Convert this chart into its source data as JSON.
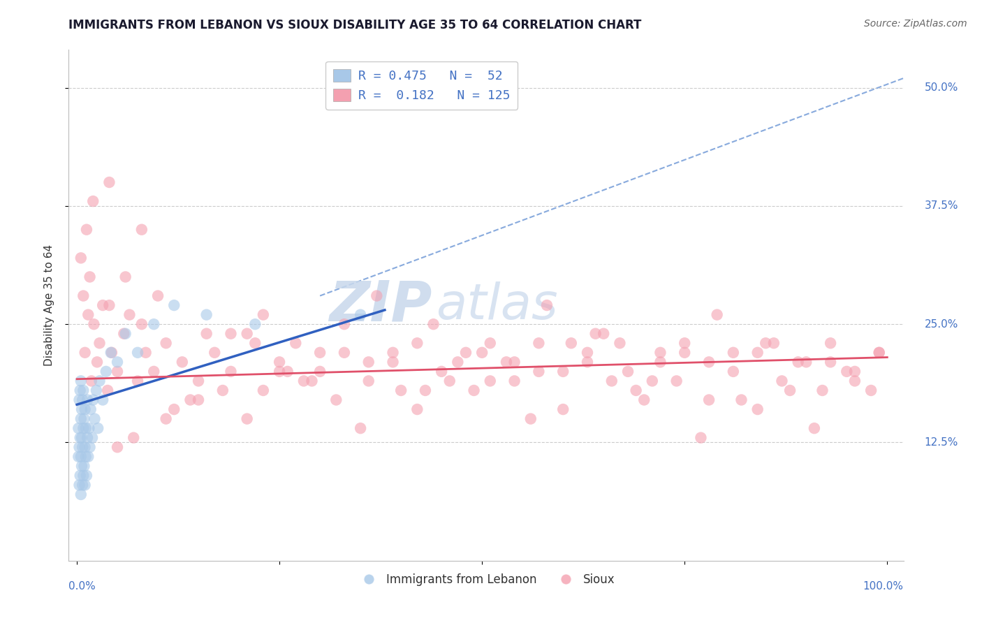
{
  "title": "IMMIGRANTS FROM LEBANON VS SIOUX DISABILITY AGE 35 TO 64 CORRELATION CHART",
  "source_text": "Source: ZipAtlas.com",
  "ylabel": "Disability Age 35 to 64",
  "xlim": [
    -0.01,
    1.02
  ],
  "ylim": [
    0.0,
    0.54
  ],
  "ytick_vals": [
    0.125,
    0.25,
    0.375,
    0.5
  ],
  "ytick_labels": [
    "12.5%",
    "25.0%",
    "37.5%",
    "50.0%"
  ],
  "xtick_vals": [
    0.0,
    1.0
  ],
  "xtick_labels": [
    "0.0%",
    "100.0%"
  ],
  "legend_line1": "R = 0.475   N =  52",
  "legend_line2": "R =  0.182   N = 125",
  "blue_scatter_color": "#a8c8e8",
  "pink_scatter_color": "#f4a0b0",
  "blue_line_color": "#3060c0",
  "pink_line_color": "#e0506a",
  "dash_line_color": "#88aadd",
  "tick_color": "#4472c4",
  "watermark_color": "#c8d8ec",
  "blue_x": [
    0.002,
    0.002,
    0.003,
    0.003,
    0.003,
    0.004,
    0.004,
    0.004,
    0.005,
    0.005,
    0.005,
    0.005,
    0.006,
    0.006,
    0.006,
    0.007,
    0.007,
    0.007,
    0.008,
    0.008,
    0.008,
    0.009,
    0.009,
    0.01,
    0.01,
    0.01,
    0.011,
    0.011,
    0.012,
    0.013,
    0.013,
    0.014,
    0.015,
    0.016,
    0.017,
    0.019,
    0.02,
    0.022,
    0.024,
    0.026,
    0.028,
    0.032,
    0.036,
    0.042,
    0.05,
    0.06,
    0.075,
    0.095,
    0.12,
    0.16,
    0.22,
    0.35
  ],
  "blue_y": [
    0.11,
    0.14,
    0.08,
    0.12,
    0.17,
    0.09,
    0.13,
    0.18,
    0.07,
    0.11,
    0.15,
    0.19,
    0.1,
    0.13,
    0.16,
    0.08,
    0.12,
    0.17,
    0.09,
    0.14,
    0.18,
    0.1,
    0.15,
    0.08,
    0.12,
    0.16,
    0.11,
    0.14,
    0.09,
    0.13,
    0.17,
    0.11,
    0.14,
    0.12,
    0.16,
    0.13,
    0.17,
    0.15,
    0.18,
    0.14,
    0.19,
    0.17,
    0.2,
    0.22,
    0.21,
    0.24,
    0.22,
    0.25,
    0.27,
    0.26,
    0.25,
    0.26
  ],
  "pink_x": [
    0.005,
    0.008,
    0.01,
    0.012,
    0.014,
    0.016,
    0.018,
    0.021,
    0.025,
    0.028,
    0.032,
    0.038,
    0.043,
    0.05,
    0.058,
    0.065,
    0.075,
    0.085,
    0.095,
    0.11,
    0.13,
    0.15,
    0.17,
    0.19,
    0.21,
    0.23,
    0.25,
    0.27,
    0.3,
    0.33,
    0.36,
    0.39,
    0.42,
    0.45,
    0.48,
    0.51,
    0.54,
    0.57,
    0.6,
    0.63,
    0.66,
    0.69,
    0.72,
    0.75,
    0.78,
    0.81,
    0.84,
    0.87,
    0.9,
    0.93,
    0.96,
    0.99,
    0.08,
    0.15,
    0.22,
    0.29,
    0.36,
    0.43,
    0.5,
    0.57,
    0.64,
    0.71,
    0.78,
    0.85,
    0.92,
    0.99,
    0.12,
    0.19,
    0.26,
    0.33,
    0.4,
    0.47,
    0.54,
    0.61,
    0.68,
    0.75,
    0.82,
    0.89,
    0.96,
    0.04,
    0.11,
    0.18,
    0.25,
    0.32,
    0.39,
    0.46,
    0.53,
    0.6,
    0.67,
    0.74,
    0.81,
    0.88,
    0.95,
    0.07,
    0.14,
    0.21,
    0.28,
    0.35,
    0.42,
    0.49,
    0.56,
    0.63,
    0.7,
    0.77,
    0.84,
    0.91,
    0.98,
    0.16,
    0.23,
    0.3,
    0.37,
    0.44,
    0.51,
    0.58,
    0.65,
    0.72,
    0.79,
    0.86,
    0.93,
    0.05,
    0.02,
    0.04,
    0.06,
    0.08,
    0.1
  ],
  "pink_y": [
    0.32,
    0.28,
    0.22,
    0.35,
    0.26,
    0.3,
    0.19,
    0.25,
    0.21,
    0.23,
    0.27,
    0.18,
    0.22,
    0.2,
    0.24,
    0.26,
    0.19,
    0.22,
    0.2,
    0.23,
    0.21,
    0.19,
    0.22,
    0.2,
    0.24,
    0.18,
    0.21,
    0.23,
    0.2,
    0.22,
    0.19,
    0.21,
    0.23,
    0.2,
    0.22,
    0.19,
    0.21,
    0.23,
    0.2,
    0.22,
    0.19,
    0.18,
    0.21,
    0.23,
    0.17,
    0.2,
    0.22,
    0.19,
    0.21,
    0.23,
    0.2,
    0.22,
    0.25,
    0.17,
    0.23,
    0.19,
    0.21,
    0.18,
    0.22,
    0.2,
    0.24,
    0.19,
    0.21,
    0.23,
    0.18,
    0.22,
    0.16,
    0.24,
    0.2,
    0.25,
    0.18,
    0.21,
    0.19,
    0.23,
    0.2,
    0.22,
    0.17,
    0.21,
    0.19,
    0.27,
    0.15,
    0.18,
    0.2,
    0.17,
    0.22,
    0.19,
    0.21,
    0.16,
    0.23,
    0.19,
    0.22,
    0.18,
    0.2,
    0.13,
    0.17,
    0.15,
    0.19,
    0.14,
    0.16,
    0.18,
    0.15,
    0.21,
    0.17,
    0.13,
    0.16,
    0.14,
    0.18,
    0.24,
    0.26,
    0.22,
    0.28,
    0.25,
    0.23,
    0.27,
    0.24,
    0.22,
    0.26,
    0.23,
    0.21,
    0.12,
    0.38,
    0.4,
    0.3,
    0.35,
    0.28
  ],
  "blue_line_x": [
    0.0,
    0.38
  ],
  "blue_line_y": [
    0.165,
    0.265
  ],
  "pink_line_x": [
    0.0,
    1.0
  ],
  "pink_line_y": [
    0.192,
    0.215
  ],
  "dash_line_x": [
    0.3,
    1.02
  ],
  "dash_line_y": [
    0.28,
    0.51
  ]
}
